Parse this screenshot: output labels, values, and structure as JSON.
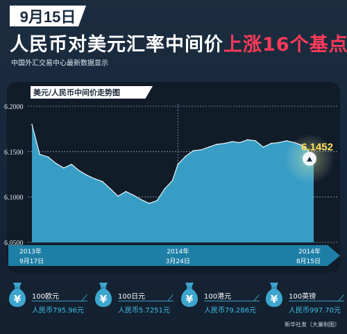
{
  "header": {
    "date_badge": "9月15日",
    "headline_main": "人民币对美元汇率中间价",
    "headline_highlight": "上涨16个基点",
    "subtitle": "中国外汇交易中心最新数据显示"
  },
  "colors": {
    "background": "#1a2b3e",
    "area_fill": "#3ba4cc",
    "area_line": "#e8f6fb",
    "highlight_red": "#ff3a5a",
    "timeline_bar": "#1e7fa6",
    "current_value_color": "#ffe25a",
    "rmb_text": "#3fc0e8"
  },
  "chart_data": {
    "type": "area",
    "title": "美元/人民币中间价走势图",
    "ylim": [
      6.05,
      6.2
    ],
    "yticks": [
      "6.2000",
      "6.1500",
      "6.1000",
      "6.0500"
    ],
    "x": [
      "2013-09-17",
      "2013-09-27",
      "2013-10-08",
      "2013-10-18",
      "2013-10-28",
      "2013-11-07",
      "2013-11-17",
      "2013-11-27",
      "2013-12-07",
      "2013-12-17",
      "2013-12-27",
      "2014-01-06",
      "2014-01-16",
      "2014-01-26",
      "2014-02-05",
      "2014-02-15",
      "2014-02-25",
      "2014-03-07",
      "2014-03-17",
      "2014-03-24",
      "2014-04-03",
      "2014-04-13",
      "2014-04-23",
      "2014-05-03",
      "2014-05-13",
      "2014-05-23",
      "2014-06-02",
      "2014-06-12",
      "2014-06-22",
      "2014-07-02",
      "2014-07-12",
      "2014-07-22",
      "2014-08-01",
      "2014-08-11",
      "2014-08-21",
      "2014-08-31",
      "2014-09-15"
    ],
    "values": [
      6.18,
      6.147,
      6.144,
      6.137,
      6.132,
      6.136,
      6.129,
      6.124,
      6.12,
      6.117,
      6.109,
      6.101,
      6.106,
      6.102,
      6.097,
      6.093,
      6.096,
      6.109,
      6.118,
      6.136,
      6.145,
      6.151,
      6.152,
      6.155,
      6.158,
      6.159,
      6.161,
      6.16,
      6.163,
      6.162,
      6.155,
      6.159,
      6.16,
      6.162,
      6.16,
      6.157,
      6.1452
    ],
    "timeline_labels": [
      {
        "year": "2013年",
        "date": "9月17日"
      },
      {
        "year": "2014年",
        "date": "3月24日"
      },
      {
        "year": "2014年",
        "date": "8月15日"
      }
    ],
    "current_value_label": "6.1452"
  },
  "cards": [
    {
      "icon": "money-bag-icon",
      "symbol": "¥",
      "foreign": "100欧元",
      "rmb": "人民币795.96元"
    },
    {
      "icon": "money-bag-icon",
      "symbol": "¥",
      "foreign": "100日元",
      "rmb": "人民币5.7251元"
    },
    {
      "icon": "money-bag-icon",
      "symbol": "¥",
      "foreign": "100港元",
      "rmb": "人民币79.286元"
    },
    {
      "icon": "money-bag-icon",
      "symbol": "¥",
      "foreign": "100英镑",
      "rmb": "人民币997.70元"
    }
  ],
  "credit": "新华社发（大巢制图）"
}
